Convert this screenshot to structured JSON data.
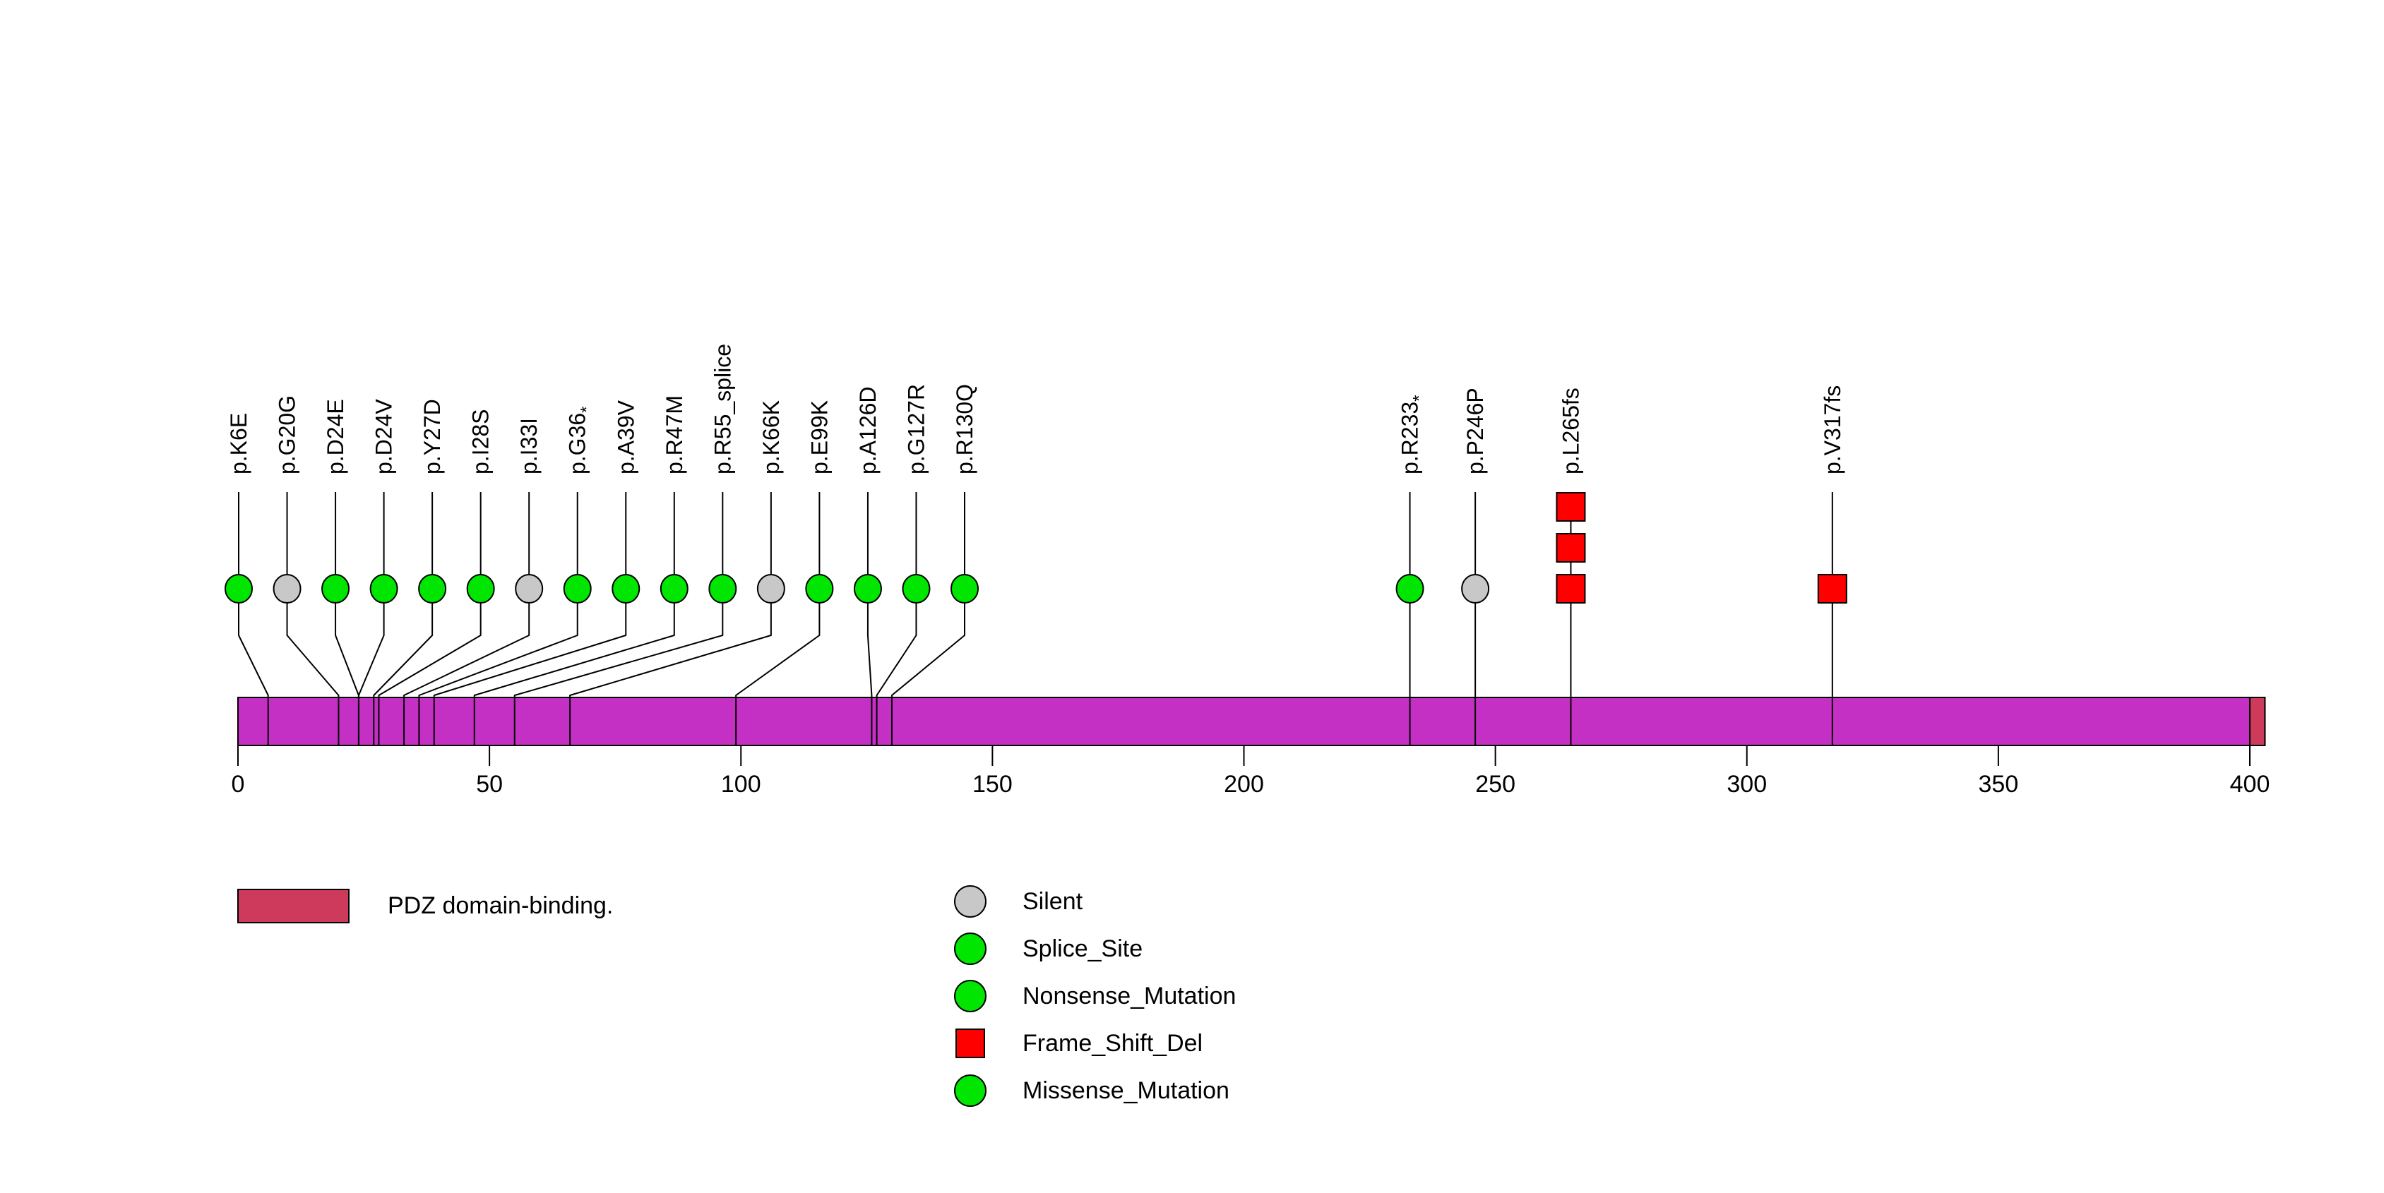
{
  "chart_data": {
    "type": "lollipop",
    "title": "",
    "protein_length": 403,
    "axis": {
      "min": 0,
      "max": 403,
      "ticks": [
        0,
        50,
        100,
        150,
        200,
        250,
        300,
        350,
        400
      ]
    },
    "backbone_color": "#C42FC4",
    "domains": [
      {
        "name": "PDZ domain-binding.",
        "start": 400,
        "end": 403,
        "color": "#CE3A5C"
      }
    ],
    "marker_styles": {
      "Silent": {
        "shape": "circle",
        "color": "#C8C8C8"
      },
      "Splice_Site": {
        "shape": "circle",
        "color": "#00E600"
      },
      "Nonsense_Mutation": {
        "shape": "circle",
        "color": "#00E600"
      },
      "Frame_Shift_Del": {
        "shape": "square",
        "color": "#FF0000"
      },
      "Missense_Mutation": {
        "shape": "circle",
        "color": "#00E600"
      }
    },
    "mutations": [
      {
        "label": "p.K6E",
        "residue": 6,
        "type": "Missense_Mutation",
        "count": 1
      },
      {
        "label": "p.G20G",
        "residue": 20,
        "type": "Silent",
        "count": 1
      },
      {
        "label": "p.D24E",
        "residue": 24,
        "type": "Missense_Mutation",
        "count": 1
      },
      {
        "label": "p.D24V",
        "residue": 24,
        "type": "Missense_Mutation",
        "count": 1
      },
      {
        "label": "p.Y27D",
        "residue": 27,
        "type": "Missense_Mutation",
        "count": 1
      },
      {
        "label": "p.I28S",
        "residue": 28,
        "type": "Missense_Mutation",
        "count": 1
      },
      {
        "label": "p.I33I",
        "residue": 33,
        "type": "Silent",
        "count": 1
      },
      {
        "label": "p.G36*",
        "residue": 36,
        "type": "Nonsense_Mutation",
        "count": 1
      },
      {
        "label": "p.A39V",
        "residue": 39,
        "type": "Missense_Mutation",
        "count": 1
      },
      {
        "label": "p.R47M",
        "residue": 47,
        "type": "Missense_Mutation",
        "count": 1
      },
      {
        "label": "p.R55_splice",
        "residue": 55,
        "type": "Splice_Site",
        "count": 1
      },
      {
        "label": "p.K66K",
        "residue": 66,
        "type": "Silent",
        "count": 1
      },
      {
        "label": "p.E99K",
        "residue": 99,
        "type": "Missense_Mutation",
        "count": 1
      },
      {
        "label": "p.A126D",
        "residue": 126,
        "type": "Missense_Mutation",
        "count": 1
      },
      {
        "label": "p.G127R",
        "residue": 127,
        "type": "Missense_Mutation",
        "count": 1
      },
      {
        "label": "p.R130Q",
        "residue": 130,
        "type": "Missense_Mutation",
        "count": 1
      },
      {
        "label": "p.R233*",
        "residue": 233,
        "type": "Nonsense_Mutation",
        "count": 1
      },
      {
        "label": "p.P246P",
        "residue": 246,
        "type": "Silent",
        "count": 1
      },
      {
        "label": "p.L265fs",
        "residue": 265,
        "type": "Frame_Shift_Del",
        "count": 3
      },
      {
        "label": "p.V317fs",
        "residue": 317,
        "type": "Frame_Shift_Del",
        "count": 1
      }
    ],
    "legend": [
      {
        "label": "Silent",
        "shape": "circle",
        "color": "#C8C8C8"
      },
      {
        "label": "Splice_Site",
        "shape": "circle",
        "color": "#00E600"
      },
      {
        "label": "Nonsense_Mutation",
        "shape": "circle",
        "color": "#00E600"
      },
      {
        "label": "Frame_Shift_Del",
        "shape": "square",
        "color": "#FF0000"
      },
      {
        "label": "Missense_Mutation",
        "shape": "circle",
        "color": "#00E600"
      }
    ]
  }
}
